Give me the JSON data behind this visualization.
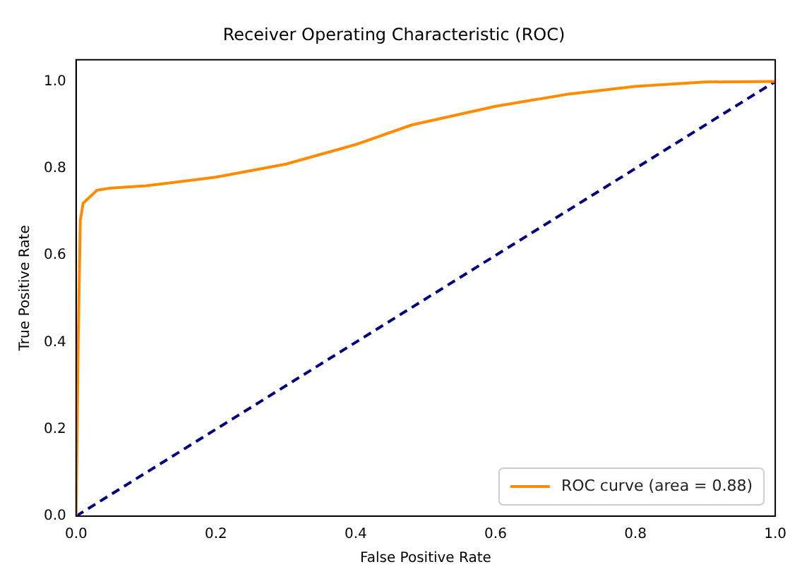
{
  "chart_data": {
    "type": "line",
    "title": "Receiver Operating Characteristic (ROC)",
    "xlabel": "False Positive Rate",
    "ylabel": "True Positive Rate",
    "xlim": [
      0,
      1
    ],
    "ylim": [
      0,
      1.05
    ],
    "xticks": [
      {
        "value": 0,
        "label": "0.0"
      },
      0.2,
      0.4,
      0.6,
      0.8,
      {
        "value": 1,
        "label": "1.0"
      }
    ],
    "yticks": [
      {
        "value": 0,
        "label": "0.0"
      },
      0.2,
      0.4,
      0.6,
      0.8,
      {
        "value": 1,
        "label": "1.0"
      }
    ],
    "grid": false,
    "legend": "bottom right",
    "marker": "none",
    "series": [
      {
        "name": "ROC curve (area = 0.88)",
        "color": "#ff8c00",
        "line_style": "solid",
        "x": [
          0,
          0.003,
          0.006,
          0.01,
          0.02,
          0.03,
          0.05,
          0.1,
          0.2,
          0.3,
          0.4,
          0.48,
          0.6,
          0.7,
          0.8,
          0.9,
          1
        ],
        "values": [
          0,
          0.4,
          0.68,
          0.72,
          0.735,
          0.75,
          0.755,
          0.76,
          0.78,
          0.81,
          0.855,
          0.9,
          0.943,
          0.97,
          0.989,
          0.999,
          1
        ]
      },
      {
        "color": "#000080",
        "line_style": "dashed",
        "x": [
          0,
          1
        ],
        "values": [
          0,
          1
        ]
      }
    ]
  }
}
